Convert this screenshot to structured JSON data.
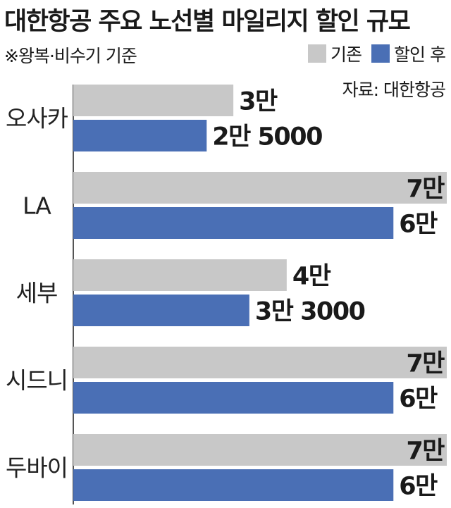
{
  "title": "대한항공 주요 노선별 마일리지 할인 규모",
  "note": "※왕복·비수기 기준",
  "source": "자료: 대한항공",
  "colors": {
    "before": "#c8c8c8",
    "after": "#4a6fb5",
    "axis": "#555555"
  },
  "chart_data": {
    "type": "bar",
    "orientation": "horizontal",
    "categories": [
      "오사카",
      "LA",
      "세부",
      "시드니",
      "두바이"
    ],
    "series": [
      {
        "name": "기존",
        "values": [
          30000,
          70000,
          40000,
          70000,
          70000
        ],
        "labels": [
          "3만",
          "7만",
          "4만",
          "7만",
          "7만"
        ]
      },
      {
        "name": "할인 후",
        "values": [
          25000,
          60000,
          33000,
          60000,
          60000
        ],
        "labels": [
          "2만 5000",
          "6만",
          "3만 3000",
          "6만",
          "6만"
        ]
      }
    ],
    "title": "대한항공 주요 노선별 마일리지 할인 규모",
    "xlim": [
      0,
      70000
    ],
    "grid": false,
    "legend": "top-right"
  }
}
